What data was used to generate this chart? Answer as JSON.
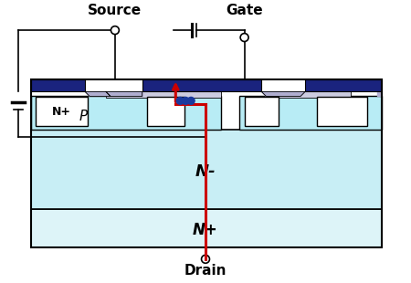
{
  "bg_color": "#ffffff",
  "colors": {
    "light_blue": "#c8eef5",
    "lighter_blue": "#ddf4f8",
    "dark_blue": "#1a237e",
    "oxide_gray": "#b0aed0",
    "outline": "#000000",
    "red": "#cc0000",
    "dot_blue": "#1a3a9e",
    "p_well": "#b8ecf5"
  },
  "labels": {
    "source": "Source",
    "gate": "Gate",
    "drain": "Drain",
    "N_plus_left": "N+",
    "P_region": "P",
    "N_minus": "N-",
    "N_plus_bottom": "N+"
  }
}
